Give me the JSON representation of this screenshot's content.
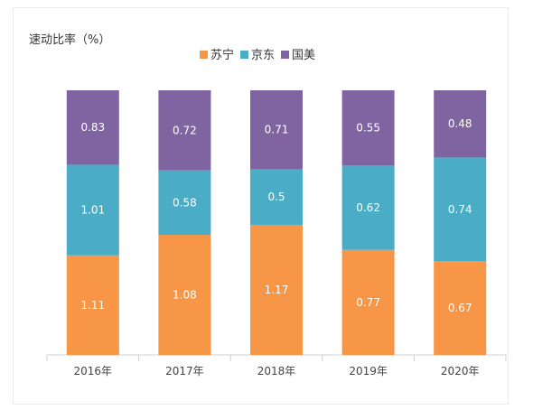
{
  "chart_data": {
    "type": "stacked-bar",
    "title": "速动比率（%）",
    "categories": [
      "2016年",
      "2017年",
      "2018年",
      "2019年",
      "2020年"
    ],
    "series": [
      {
        "name": "苏宁",
        "color": "#F79646",
        "values": [
          1.11,
          1.08,
          1.17,
          0.77,
          0.67
        ]
      },
      {
        "name": "京东",
        "color": "#4BACC6",
        "values": [
          1.01,
          0.58,
          0.5,
          0.62,
          0.74
        ]
      },
      {
        "name": "国美",
        "color": "#8064A2",
        "values": [
          0.83,
          0.72,
          0.71,
          0.55,
          0.48
        ]
      }
    ],
    "stacking": "percent",
    "legend_position": "top",
    "grid": false
  }
}
